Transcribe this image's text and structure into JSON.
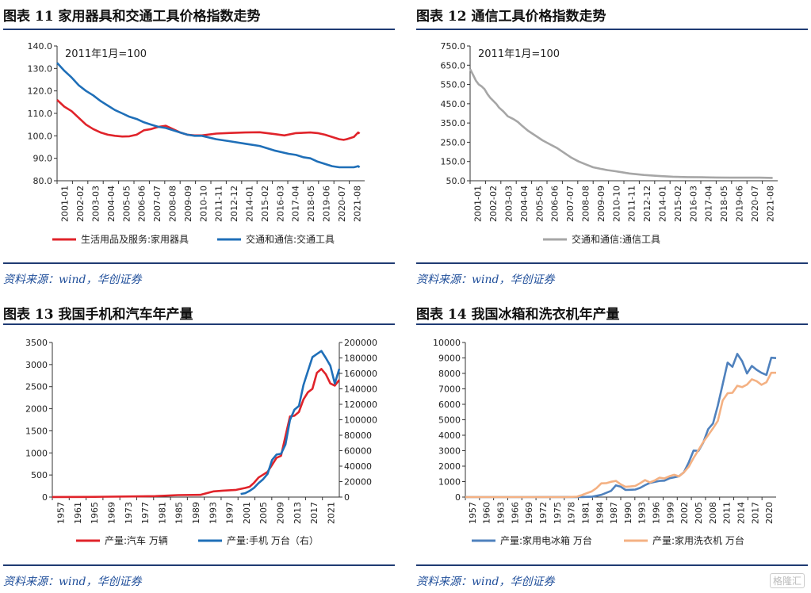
{
  "panels": [
    {
      "title": "图表 11 家用器具和交通工具价格指数走势",
      "source": "资料来源：wind，华创证券"
    },
    {
      "title": "图表 12 通信工具价格指数走势",
      "source": "资料来源：wind，华创证券"
    },
    {
      "title": "图表 13 我国手机和汽车年产量",
      "source": "资料来源：wind，华创证券"
    },
    {
      "title": "图表 14 我国冰箱和洗衣机年产量",
      "source": "资料来源：wind，华创证券"
    }
  ],
  "watermark": "格隆汇",
  "chart_data": [
    {
      "type": "line",
      "annotation": "2011年1月=100",
      "ylim": [
        80,
        140
      ],
      "yticks": [
        "80.0",
        "90.0",
        "100.0",
        "110.0",
        "120.0",
        "130.0",
        "140.0"
      ],
      "xlim": [
        2001.0,
        2022.25
      ],
      "xticks": [
        "2001-01",
        "2002-02",
        "2003-03",
        "2004-04",
        "2005-05",
        "2006-06",
        "2007-07",
        "2008-08",
        "2009-09",
        "2010-10",
        "2011-11",
        "2012-12",
        "2014-01",
        "2015-02",
        "2016-03",
        "2017-04",
        "2018-05",
        "2019-06",
        "2020-07",
        "2021-08"
      ],
      "series": [
        {
          "name": "生活用品及服务:家用器具",
          "color": "#e0232a",
          "x": [
            2001.0,
            2001.5,
            2002.0,
            2002.5,
            2003.0,
            2003.5,
            2004.0,
            2004.5,
            2005.0,
            2005.5,
            2006.0,
            2006.5,
            2007.0,
            2007.5,
            2008.0,
            2008.5,
            2009.0,
            2009.5,
            2010.0,
            2010.5,
            2011.0,
            2012.0,
            2013.0,
            2014.0,
            2015.0,
            2016.0,
            2016.7,
            2017.5,
            2018.5,
            2019.0,
            2019.5,
            2020.0,
            2020.5,
            2020.8,
            2021.0,
            2021.5,
            2021.8,
            2021.9
          ],
          "y": [
            116,
            113,
            111,
            108,
            105,
            103,
            101.5,
            100.5,
            100,
            99.7,
            99.8,
            100.5,
            102.5,
            103,
            104,
            104.5,
            103,
            101.5,
            100.5,
            100.2,
            100.2,
            101,
            101.3,
            101.5,
            101.6,
            100.8,
            100.2,
            101.2,
            101.5,
            101.2,
            100.5,
            99.5,
            98.5,
            98.2,
            98.5,
            99.5,
            101.5,
            101
          ]
        },
        {
          "name": "交通和通信:交通工具",
          "color": "#1f6fb8",
          "x": [
            2001.0,
            2001.5,
            2002.0,
            2002.5,
            2003.0,
            2003.5,
            2004.0,
            2004.5,
            2005.0,
            2005.5,
            2006.0,
            2006.5,
            2007.0,
            2007.5,
            2008.0,
            2008.5,
            2009.0,
            2009.5,
            2010.0,
            2010.5,
            2011.0,
            2012.0,
            2013.0,
            2014.0,
            2015.0,
            2016.0,
            2017.0,
            2017.5,
            2018.0,
            2018.5,
            2019.0,
            2019.5,
            2020.0,
            2020.5,
            2021.0,
            2021.5,
            2021.8,
            2021.9
          ],
          "y": [
            132.5,
            129,
            126,
            122.5,
            120,
            118,
            115.5,
            113.5,
            111.5,
            110,
            108.5,
            107.5,
            106,
            105,
            104,
            103.5,
            102.5,
            101.5,
            100.5,
            100,
            100,
            98.5,
            97.5,
            96.5,
            95.5,
            93.5,
            92,
            91.5,
            90.5,
            90,
            88.5,
            87.5,
            86.5,
            86,
            86,
            86,
            86.5,
            86
          ]
        }
      ]
    },
    {
      "type": "line",
      "annotation": "2011年1月=100",
      "ylim": [
        50,
        750
      ],
      "yticks": [
        "50.0",
        "150.0",
        "250.0",
        "350.0",
        "450.0",
        "550.0",
        "650.0",
        "750.0"
      ],
      "xlim": [
        2001.0,
        2022.25
      ],
      "xticks": [
        "2001-01",
        "2002-02",
        "2003-03",
        "2004-04",
        "2005-05",
        "2006-06",
        "2007-07",
        "2008-08",
        "2009-09",
        "2010-10",
        "2011-11",
        "2012-12",
        "2014-01",
        "2015-02",
        "2016-03",
        "2017-04",
        "2018-05",
        "2019-06",
        "2020-07",
        "2021-08"
      ],
      "series": [
        {
          "name": "交通和通信:通信工具",
          "color": "#a6a6a6",
          "x": [
            2001.0,
            2001.2,
            2001.4,
            2001.6,
            2001.8,
            2002.0,
            2002.2,
            2002.4,
            2002.6,
            2002.8,
            2003.0,
            2003.3,
            2003.6,
            2004.0,
            2004.3,
            2004.6,
            2005.0,
            2005.3,
            2005.6,
            2006.0,
            2006.5,
            2007.0,
            2007.5,
            2008.0,
            2008.5,
            2009.0,
            2009.5,
            2010.0,
            2010.5,
            2011.0,
            2011.5,
            2012.0,
            2013.0,
            2014.0,
            2015.0,
            2016.0,
            2017.0,
            2018.0,
            2019.0,
            2020.0,
            2021.0,
            2021.9
          ],
          "y": [
            630,
            600,
            570,
            550,
            540,
            525,
            500,
            480,
            465,
            450,
            430,
            410,
            385,
            370,
            355,
            335,
            310,
            295,
            280,
            260,
            240,
            220,
            195,
            170,
            150,
            135,
            120,
            112,
            105,
            100,
            94,
            88,
            80,
            75,
            71,
            69,
            68,
            67,
            66,
            66,
            66,
            65
          ]
        }
      ]
    },
    {
      "type": "line",
      "ylim": [
        0,
        3500
      ],
      "yticks": [
        "0",
        "500",
        "1000",
        "1500",
        "2000",
        "2500",
        "3000",
        "3500"
      ],
      "y2lim": [
        0,
        200000
      ],
      "y2ticks": [
        "0",
        "20000",
        "40000",
        "60000",
        "80000",
        "100000",
        "120000",
        "140000",
        "160000",
        "180000",
        "200000"
      ],
      "xlim": [
        1957,
        2021
      ],
      "xticks": [
        "1957",
        "1961",
        "1965",
        "1969",
        "1973",
        "1977",
        "1981",
        "1985",
        "1989",
        "1993",
        "1997",
        "2001",
        "2005",
        "2009",
        "2013",
        "2017",
        "2021"
      ],
      "series": [
        {
          "name": "产量:汽车 万辆",
          "color": "#e0232a",
          "axis": "left",
          "x": [
            1957,
            1965,
            1975,
            1980,
            1985,
            1990,
            1993,
            1995,
            1998,
            2000,
            2001,
            2002,
            2003,
            2004,
            2005,
            2006,
            2007,
            2008,
            2009,
            2010,
            2011,
            2012,
            2013,
            2014,
            2015,
            2016,
            2017,
            2018,
            2019,
            2020,
            2021
          ],
          "y": [
            2,
            4,
            14,
            22,
            44,
            51,
            130,
            145,
            163,
            207,
            234,
            325,
            444,
            507,
            570,
            728,
            888,
            935,
            1379,
            1826,
            1842,
            1927,
            2212,
            2372,
            2450,
            2812,
            2901,
            2781,
            2572,
            2523,
            2653
          ]
        },
        {
          "name": "产量:手机 万台（右）",
          "color": "#1f6fb8",
          "axis": "right",
          "x": [
            1999,
            2000,
            2001,
            2002,
            2003,
            2004,
            2005,
            2006,
            2007,
            2008,
            2009,
            2010,
            2011,
            2012,
            2013,
            2014,
            2015,
            2016,
            2017,
            2018,
            2019,
            2020,
            2021
          ],
          "y": [
            4000,
            5000,
            8000,
            12000,
            18000,
            23000,
            30000,
            48000,
            55000,
            56000,
            68000,
            99800,
            113000,
            118000,
            145000,
            163000,
            181000,
            185000,
            189000,
            180000,
            170000,
            147000,
            166000
          ]
        }
      ]
    },
    {
      "type": "line",
      "ylim": [
        0,
        10000
      ],
      "yticks": [
        "0",
        "1000",
        "2000",
        "3000",
        "4000",
        "5000",
        "6000",
        "7000",
        "8000",
        "9000",
        "10000"
      ],
      "xlim": [
        1957,
        2021
      ],
      "xticks": [
        "1957",
        "1960",
        "1963",
        "1966",
        "1969",
        "1972",
        "1975",
        "1978",
        "1981",
        "1984",
        "1987",
        "1990",
        "1993",
        "1996",
        "1999",
        "2002",
        "2005",
        "2008",
        "2011",
        "2014",
        "2017",
        "2020"
      ],
      "series": [
        {
          "name": "产量:家用电冰箱 万台",
          "color": "#4f81bd",
          "x": [
            1957,
            1970,
            1978,
            1981,
            1983,
            1985,
            1987,
            1988,
            1989,
            1990,
            1991,
            1992,
            1993,
            1994,
            1995,
            1996,
            1997,
            1998,
            1999,
            2000,
            2001,
            2002,
            2003,
            2004,
            2005,
            2006,
            2007,
            2008,
            2009,
            2010,
            2011,
            2012,
            2013,
            2014,
            2015,
            2016,
            2017,
            2018,
            2019,
            2020,
            2021
          ],
          "y": [
            0,
            0,
            3,
            6,
            19,
            145,
            400,
            757,
            670,
            463,
            470,
            486,
            597,
            768,
            918,
            980,
            1045,
            1060,
            1210,
            1279,
            1351,
            1599,
            2243,
            3008,
            2987,
            3530,
            4397,
            4757,
            5930,
            7295,
            8699,
            8427,
            9261,
            8796,
            7993,
            8481,
            8231,
            8034,
            7904,
            9014,
            8992
          ]
        },
        {
          "name": "产量:家用洗衣机 万台",
          "color": "#f4b183",
          "x": [
            1957,
            1977,
            1978,
            1980,
            1981,
            1982,
            1983,
            1984,
            1985,
            1986,
            1987,
            1988,
            1989,
            1990,
            1991,
            1992,
            1993,
            1994,
            1995,
            1996,
            1997,
            1998,
            1999,
            2000,
            2001,
            2002,
            2003,
            2004,
            2005,
            2006,
            2007,
            2008,
            2009,
            2010,
            2011,
            2012,
            2013,
            2014,
            2015,
            2016,
            2017,
            2018,
            2019,
            2020,
            2021
          ],
          "y": [
            0,
            0,
            1,
            25,
            128,
            253,
            366,
            578,
            887,
            899,
            990,
            1047,
            825,
            663,
            687,
            724,
            896,
            1095,
            948,
            1075,
            1255,
            1207,
            1342,
            1443,
            1341,
            1596,
            1964,
            2533,
            3036,
            3561,
            4005,
            4447,
            4935,
            6248,
            6715,
            6742,
            7202,
            7114,
            7275,
            7621,
            7500,
            7263,
            7433,
            8042,
            8043
          ]
        }
      ]
    }
  ]
}
